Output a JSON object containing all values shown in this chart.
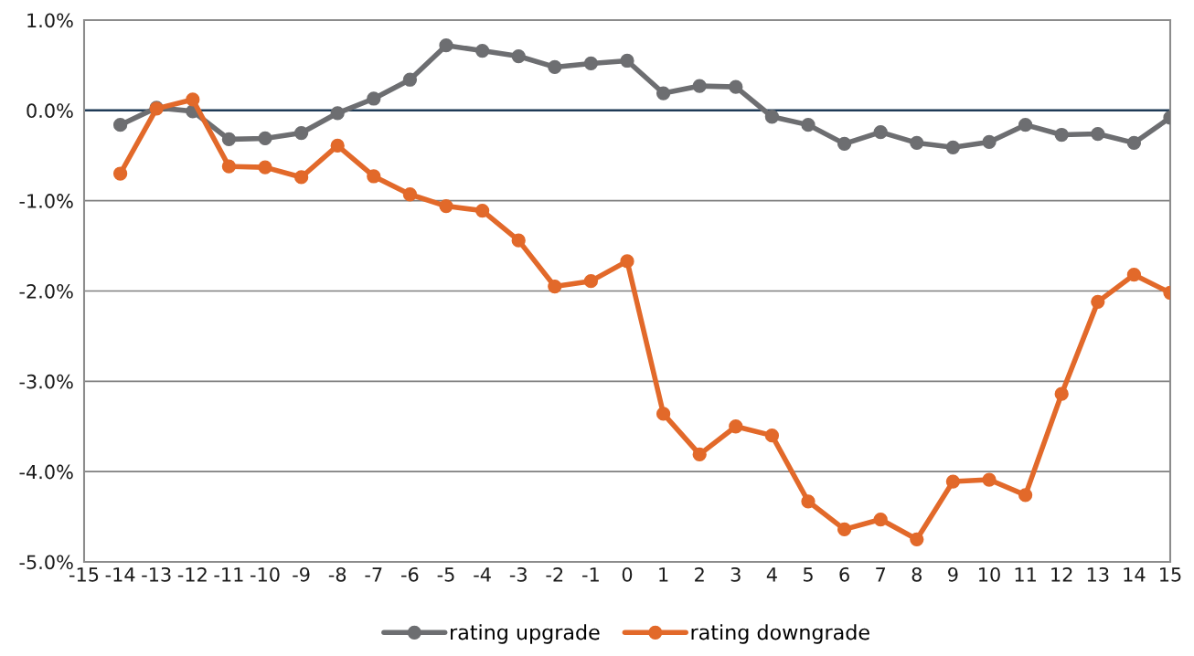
{
  "chart_data": {
    "type": "line",
    "x": [
      -14,
      -13,
      -12,
      -11,
      -10,
      -9,
      -8,
      -7,
      -6,
      -5,
      -4,
      -3,
      -2,
      -1,
      0,
      1,
      2,
      3,
      4,
      5,
      6,
      7,
      8,
      9,
      10,
      11,
      12,
      13,
      14,
      15
    ],
    "series": [
      {
        "name": "rating upgrade",
        "color": "#6d6e71",
        "values": [
          -0.16,
          0.03,
          -0.01,
          -0.32,
          -0.31,
          -0.25,
          -0.03,
          0.13,
          0.34,
          0.72,
          0.66,
          0.6,
          0.48,
          0.52,
          0.55,
          0.19,
          0.27,
          0.26,
          -0.07,
          -0.16,
          -0.37,
          -0.24,
          -0.36,
          -0.41,
          -0.35,
          -0.16,
          -0.27,
          -0.26,
          -0.36,
          -0.08
        ]
      },
      {
        "name": "rating downgrade",
        "color": "#e2692a",
        "values": [
          -0.7,
          0.02,
          0.12,
          -0.62,
          -0.63,
          -0.74,
          -0.39,
          -0.73,
          -0.93,
          -1.06,
          -1.11,
          -1.44,
          -1.95,
          -1.89,
          -1.67,
          -3.36,
          -3.81,
          -3.5,
          -3.6,
          -4.33,
          -4.64,
          -4.53,
          -4.75,
          -4.11,
          -4.09,
          -4.26,
          -3.14,
          -2.12,
          -1.82,
          -2.02
        ]
      }
    ],
    "xlim": [
      -15,
      15
    ],
    "xticks": [
      -15,
      -14,
      -13,
      -12,
      -11,
      -10,
      -9,
      -8,
      -7,
      -6,
      -5,
      -4,
      -3,
      -2,
      -1,
      0,
      1,
      2,
      3,
      4,
      5,
      6,
      7,
      8,
      9,
      10,
      11,
      12,
      13,
      14,
      15
    ],
    "ylim": [
      -5,
      1
    ],
    "yticks": [
      {
        "value": 1,
        "label": "1.0%"
      },
      {
        "value": 0,
        "label": "0.0%"
      },
      {
        "value": -1,
        "label": "-1.0%"
      },
      {
        "value": -2,
        "label": "-2.0%"
      },
      {
        "value": -3,
        "label": "-3.0%"
      },
      {
        "value": -4,
        "label": "-4.0%"
      },
      {
        "value": -5,
        "label": "-5.0%"
      }
    ],
    "ref_lines": [
      {
        "axis": "y",
        "value": 0,
        "color": "#1f3b57"
      }
    ],
    "grid": "y",
    "legend": "bottom",
    "marker": "circle",
    "line_style": "solid"
  }
}
